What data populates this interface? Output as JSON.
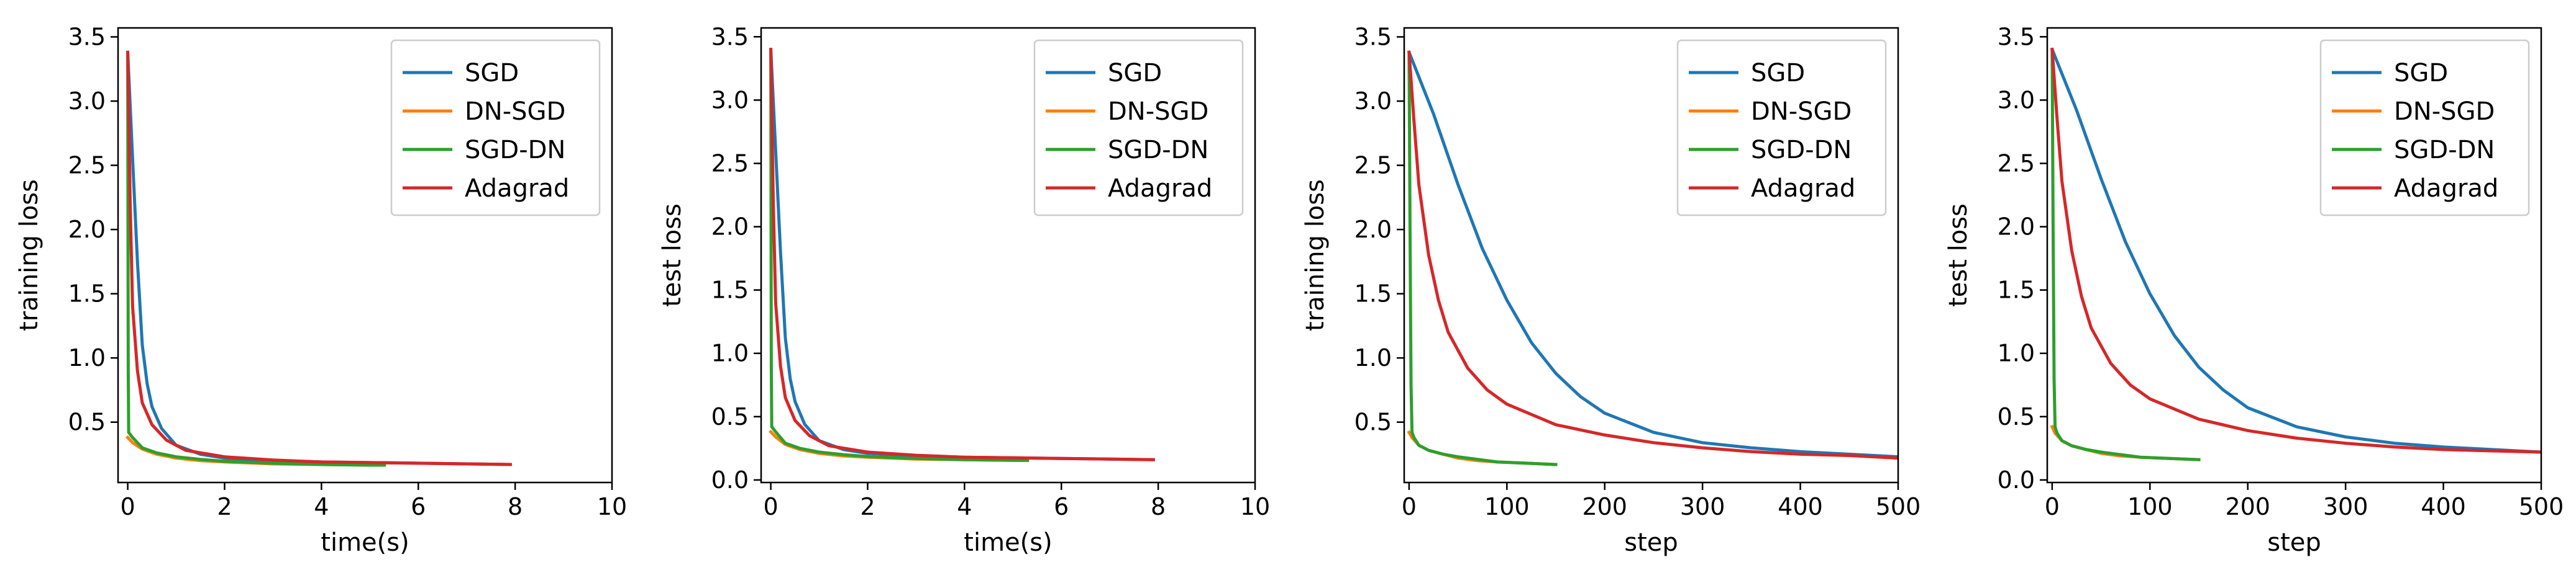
{
  "chart_data": [
    {
      "type": "line",
      "xlabel": "time(s)",
      "ylabel": "training loss",
      "xlim": [
        -0.2,
        10
      ],
      "ylim": [
        0.03,
        3.57
      ],
      "xticks": [
        0,
        2,
        4,
        6,
        8,
        10
      ],
      "xtick_labels": [
        "0",
        "2",
        "4",
        "6",
        "8",
        "10"
      ],
      "yticks": [
        0.5,
        1.0,
        1.5,
        2.0,
        2.5,
        3.0,
        3.5
      ],
      "ytick_labels": [
        "0.5",
        "1.0",
        "1.5",
        "2.0",
        "2.5",
        "3.0",
        "3.5"
      ],
      "legend_position": "top-right",
      "series": [
        {
          "name": "SGD",
          "color": "#1f77b4",
          "points": [
            [
              0,
              3.38
            ],
            [
              0.1,
              2.55
            ],
            [
              0.2,
              1.75
            ],
            [
              0.3,
              1.1
            ],
            [
              0.4,
              0.8
            ],
            [
              0.5,
              0.62
            ],
            [
              0.7,
              0.45
            ],
            [
              1.0,
              0.32
            ],
            [
              1.5,
              0.25
            ],
            [
              2,
              0.22
            ],
            [
              3,
              0.2
            ],
            [
              4,
              0.19
            ],
            [
              5,
              0.185
            ],
            [
              6,
              0.18
            ],
            [
              7,
              0.175
            ],
            [
              7.9,
              0.17
            ]
          ]
        },
        {
          "name": "DN-SGD",
          "color": "#ff7f0e",
          "points": [
            [
              0,
              0.38
            ],
            [
              0.1,
              0.34
            ],
            [
              0.3,
              0.29
            ],
            [
              0.6,
              0.25
            ],
            [
              1.0,
              0.22
            ],
            [
              1.5,
              0.2
            ],
            [
              2,
              0.19
            ],
            [
              3,
              0.175
            ],
            [
              4,
              0.17
            ],
            [
              5,
              0.165
            ],
            [
              5.3,
              0.165
            ]
          ]
        },
        {
          "name": "SGD-DN",
          "color": "#2ca02c",
          "points": [
            [
              0,
              3.36
            ],
            [
              0.005,
              2.0
            ],
            [
              0.01,
              0.9
            ],
            [
              0.02,
              0.42
            ],
            [
              0.1,
              0.38
            ],
            [
              0.3,
              0.3
            ],
            [
              0.6,
              0.26
            ],
            [
              1.0,
              0.23
            ],
            [
              1.5,
              0.21
            ],
            [
              2,
              0.195
            ],
            [
              3,
              0.18
            ],
            [
              4,
              0.17
            ],
            [
              5,
              0.165
            ],
            [
              5.3,
              0.165
            ]
          ]
        },
        {
          "name": "Adagrad",
          "color": "#d62728",
          "points": [
            [
              0,
              3.38
            ],
            [
              0.05,
              2.2
            ],
            [
              0.1,
              1.4
            ],
            [
              0.2,
              0.9
            ],
            [
              0.3,
              0.65
            ],
            [
              0.5,
              0.48
            ],
            [
              0.8,
              0.36
            ],
            [
              1.2,
              0.28
            ],
            [
              2,
              0.23
            ],
            [
              3,
              0.205
            ],
            [
              4,
              0.19
            ],
            [
              5,
              0.185
            ],
            [
              6,
              0.18
            ],
            [
              7,
              0.175
            ],
            [
              7.9,
              0.17
            ]
          ]
        }
      ]
    },
    {
      "type": "line",
      "xlabel": "time(s)",
      "ylabel": "test loss",
      "xlim": [
        -0.2,
        10
      ],
      "ylim": [
        -0.02,
        3.57
      ],
      "xticks": [
        0,
        2,
        4,
        6,
        8,
        10
      ],
      "xtick_labels": [
        "0",
        "2",
        "4",
        "6",
        "8",
        "10"
      ],
      "yticks": [
        0.0,
        0.5,
        1.0,
        1.5,
        2.0,
        2.5,
        3.0,
        3.5
      ],
      "ytick_labels": [
        "0.0",
        "0.5",
        "1.0",
        "1.5",
        "2.0",
        "2.5",
        "3.0",
        "3.5"
      ],
      "legend_position": "top-right",
      "series": [
        {
          "name": "SGD",
          "color": "#1f77b4",
          "points": [
            [
              0,
              3.4
            ],
            [
              0.1,
              2.6
            ],
            [
              0.2,
              1.8
            ],
            [
              0.3,
              1.12
            ],
            [
              0.4,
              0.8
            ],
            [
              0.5,
              0.62
            ],
            [
              0.7,
              0.44
            ],
            [
              1.0,
              0.31
            ],
            [
              1.5,
              0.24
            ],
            [
              2,
              0.21
            ],
            [
              3,
              0.19
            ],
            [
              4,
              0.18
            ],
            [
              5,
              0.175
            ],
            [
              6,
              0.17
            ],
            [
              7,
              0.165
            ],
            [
              7.9,
              0.16
            ]
          ]
        },
        {
          "name": "DN-SGD",
          "color": "#ff7f0e",
          "points": [
            [
              0,
              0.38
            ],
            [
              0.1,
              0.34
            ],
            [
              0.3,
              0.28
            ],
            [
              0.6,
              0.24
            ],
            [
              1.0,
              0.21
            ],
            [
              1.5,
              0.19
            ],
            [
              2,
              0.18
            ],
            [
              3,
              0.165
            ],
            [
              4,
              0.16
            ],
            [
              5,
              0.155
            ],
            [
              5.3,
              0.155
            ]
          ]
        },
        {
          "name": "SGD-DN",
          "color": "#2ca02c",
          "points": [
            [
              0,
              3.38
            ],
            [
              0.005,
              2.0
            ],
            [
              0.01,
              0.9
            ],
            [
              0.02,
              0.42
            ],
            [
              0.1,
              0.38
            ],
            [
              0.3,
              0.29
            ],
            [
              0.6,
              0.25
            ],
            [
              1.0,
              0.22
            ],
            [
              1.5,
              0.2
            ],
            [
              2,
              0.185
            ],
            [
              3,
              0.17
            ],
            [
              4,
              0.16
            ],
            [
              5,
              0.155
            ],
            [
              5.3,
              0.155
            ]
          ]
        },
        {
          "name": "Adagrad",
          "color": "#d62728",
          "points": [
            [
              0,
              3.4
            ],
            [
              0.05,
              2.2
            ],
            [
              0.1,
              1.4
            ],
            [
              0.2,
              0.9
            ],
            [
              0.3,
              0.65
            ],
            [
              0.5,
              0.47
            ],
            [
              0.8,
              0.35
            ],
            [
              1.2,
              0.27
            ],
            [
              2,
              0.22
            ],
            [
              3,
              0.195
            ],
            [
              4,
              0.18
            ],
            [
              5,
              0.175
            ],
            [
              6,
              0.17
            ],
            [
              7,
              0.165
            ],
            [
              7.9,
              0.16
            ]
          ]
        }
      ]
    },
    {
      "type": "line",
      "xlabel": "step",
      "ylabel": "training loss",
      "xlim": [
        -5,
        500
      ],
      "ylim": [
        0.03,
        3.57
      ],
      "xticks": [
        0,
        100,
        200,
        300,
        400,
        500
      ],
      "xtick_labels": [
        "0",
        "100",
        "200",
        "300",
        "400",
        "500"
      ],
      "yticks": [
        0.5,
        1.0,
        1.5,
        2.0,
        2.5,
        3.0,
        3.5
      ],
      "ytick_labels": [
        "0.5",
        "1.0",
        "1.5",
        "2.0",
        "2.5",
        "3.0",
        "3.5"
      ],
      "legend_position": "top-right",
      "series": [
        {
          "name": "SGD",
          "color": "#1f77b4",
          "points": [
            [
              0,
              3.38
            ],
            [
              25,
              2.9
            ],
            [
              50,
              2.35
            ],
            [
              75,
              1.85
            ],
            [
              100,
              1.45
            ],
            [
              125,
              1.12
            ],
            [
              150,
              0.88
            ],
            [
              175,
              0.7
            ],
            [
              200,
              0.57
            ],
            [
              250,
              0.42
            ],
            [
              300,
              0.34
            ],
            [
              350,
              0.3
            ],
            [
              400,
              0.27
            ],
            [
              450,
              0.25
            ],
            [
              500,
              0.23
            ]
          ]
        },
        {
          "name": "DN-SGD",
          "color": "#ff7f0e",
          "points": [
            [
              0,
              0.42
            ],
            [
              3,
              0.38
            ],
            [
              10,
              0.32
            ],
            [
              20,
              0.28
            ],
            [
              35,
              0.25
            ],
            [
              50,
              0.22
            ],
            [
              70,
              0.2
            ],
            [
              90,
              0.19
            ],
            [
              120,
              0.18
            ],
            [
              150,
              0.17
            ]
          ]
        },
        {
          "name": "SGD-DN",
          "color": "#2ca02c",
          "points": [
            [
              0,
              3.36
            ],
            [
              1,
              2.0
            ],
            [
              2,
              0.8
            ],
            [
              3,
              0.42
            ],
            [
              5,
              0.38
            ],
            [
              10,
              0.32
            ],
            [
              20,
              0.28
            ],
            [
              35,
              0.25
            ],
            [
              50,
              0.23
            ],
            [
              70,
              0.21
            ],
            [
              90,
              0.19
            ],
            [
              120,
              0.18
            ],
            [
              150,
              0.17
            ]
          ]
        },
        {
          "name": "Adagrad",
          "color": "#d62728",
          "points": [
            [
              0,
              3.38
            ],
            [
              5,
              2.85
            ],
            [
              10,
              2.35
            ],
            [
              20,
              1.8
            ],
            [
              30,
              1.45
            ],
            [
              40,
              1.2
            ],
            [
              60,
              0.92
            ],
            [
              80,
              0.75
            ],
            [
              100,
              0.64
            ],
            [
              150,
              0.48
            ],
            [
              200,
              0.4
            ],
            [
              250,
              0.34
            ],
            [
              300,
              0.3
            ],
            [
              350,
              0.27
            ],
            [
              400,
              0.25
            ],
            [
              450,
              0.24
            ],
            [
              500,
              0.22
            ]
          ]
        }
      ]
    },
    {
      "type": "line",
      "xlabel": "step",
      "ylabel": "test loss",
      "xlim": [
        -5,
        500
      ],
      "ylim": [
        -0.02,
        3.57
      ],
      "xticks": [
        0,
        100,
        200,
        300,
        400,
        500
      ],
      "xtick_labels": [
        "0",
        "100",
        "200",
        "300",
        "400",
        "500"
      ],
      "yticks": [
        0.0,
        0.5,
        1.0,
        1.5,
        2.0,
        2.5,
        3.0,
        3.5
      ],
      "ytick_labels": [
        "0.0",
        "0.5",
        "1.0",
        "1.5",
        "2.0",
        "2.5",
        "3.0",
        "3.5"
      ],
      "legend_position": "top-right",
      "series": [
        {
          "name": "SGD",
          "color": "#1f77b4",
          "points": [
            [
              0,
              3.4
            ],
            [
              25,
              2.92
            ],
            [
              50,
              2.38
            ],
            [
              75,
              1.88
            ],
            [
              100,
              1.47
            ],
            [
              125,
              1.14
            ],
            [
              150,
              0.89
            ],
            [
              175,
              0.71
            ],
            [
              200,
              0.57
            ],
            [
              250,
              0.42
            ],
            [
              300,
              0.34
            ],
            [
              350,
              0.29
            ],
            [
              400,
              0.26
            ],
            [
              450,
              0.24
            ],
            [
              500,
              0.22
            ]
          ]
        },
        {
          "name": "DN-SGD",
          "color": "#ff7f0e",
          "points": [
            [
              0,
              0.42
            ],
            [
              3,
              0.37
            ],
            [
              10,
              0.31
            ],
            [
              20,
              0.27
            ],
            [
              35,
              0.24
            ],
            [
              50,
              0.21
            ],
            [
              70,
              0.19
            ],
            [
              90,
              0.18
            ],
            [
              120,
              0.17
            ],
            [
              150,
              0.16
            ]
          ]
        },
        {
          "name": "SGD-DN",
          "color": "#2ca02c",
          "points": [
            [
              0,
              3.38
            ],
            [
              1,
              2.0
            ],
            [
              2,
              0.8
            ],
            [
              3,
              0.42
            ],
            [
              5,
              0.37
            ],
            [
              10,
              0.31
            ],
            [
              20,
              0.27
            ],
            [
              35,
              0.24
            ],
            [
              50,
              0.22
            ],
            [
              70,
              0.2
            ],
            [
              90,
              0.18
            ],
            [
              120,
              0.17
            ],
            [
              150,
              0.16
            ]
          ]
        },
        {
          "name": "Adagrad",
          "color": "#d62728",
          "points": [
            [
              0,
              3.4
            ],
            [
              5,
              2.86
            ],
            [
              10,
              2.36
            ],
            [
              20,
              1.81
            ],
            [
              30,
              1.45
            ],
            [
              40,
              1.2
            ],
            [
              60,
              0.92
            ],
            [
              80,
              0.75
            ],
            [
              100,
              0.64
            ],
            [
              150,
              0.48
            ],
            [
              200,
              0.39
            ],
            [
              250,
              0.33
            ],
            [
              300,
              0.29
            ],
            [
              350,
              0.26
            ],
            [
              400,
              0.24
            ],
            [
              450,
              0.23
            ],
            [
              500,
              0.22
            ]
          ]
        }
      ]
    }
  ]
}
